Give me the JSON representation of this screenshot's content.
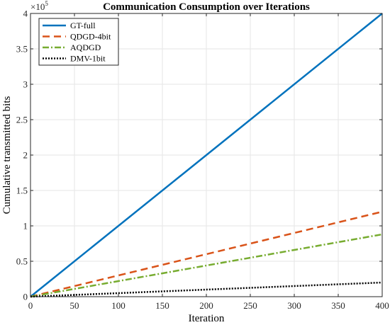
{
  "chart_data": {
    "type": "line",
    "title": "Communication Consumption over Iterations",
    "xlabel": "Iteration",
    "ylabel": "Cumulative transmitted bits",
    "y_exponent_label": "×10",
    "y_exponent_power": "5",
    "xlim": [
      0,
      400
    ],
    "ylim": [
      0,
      400000
    ],
    "x_ticks": [
      0,
      50,
      100,
      150,
      200,
      250,
      300,
      350,
      400
    ],
    "x_tick_labels": [
      "0",
      "50",
      "100",
      "150",
      "200",
      "250",
      "300",
      "350",
      "400"
    ],
    "y_ticks": [
      0,
      50000,
      100000,
      150000,
      200000,
      250000,
      300000,
      350000,
      400000
    ],
    "y_tick_labels": [
      "0",
      "0.5",
      "1",
      "1.5",
      "2",
      "2.5",
      "3",
      "3.5",
      "4"
    ],
    "grid": true,
    "legend_position": "top-left",
    "x": [
      0,
      400
    ],
    "series": [
      {
        "name": "GT-full",
        "values": [
          0,
          400000
        ],
        "color": "#0072BD",
        "style": "solid"
      },
      {
        "name": "QDGD-4bit",
        "values": [
          0,
          120000
        ],
        "color": "#D95319",
        "style": "dashed"
      },
      {
        "name": "AQDGD",
        "values": [
          0,
          88000
        ],
        "color": "#77AC30",
        "style": "dashdot"
      },
      {
        "name": "DMV-1bit",
        "values": [
          0,
          20000
        ],
        "color": "#000000",
        "style": "dotted"
      }
    ]
  }
}
